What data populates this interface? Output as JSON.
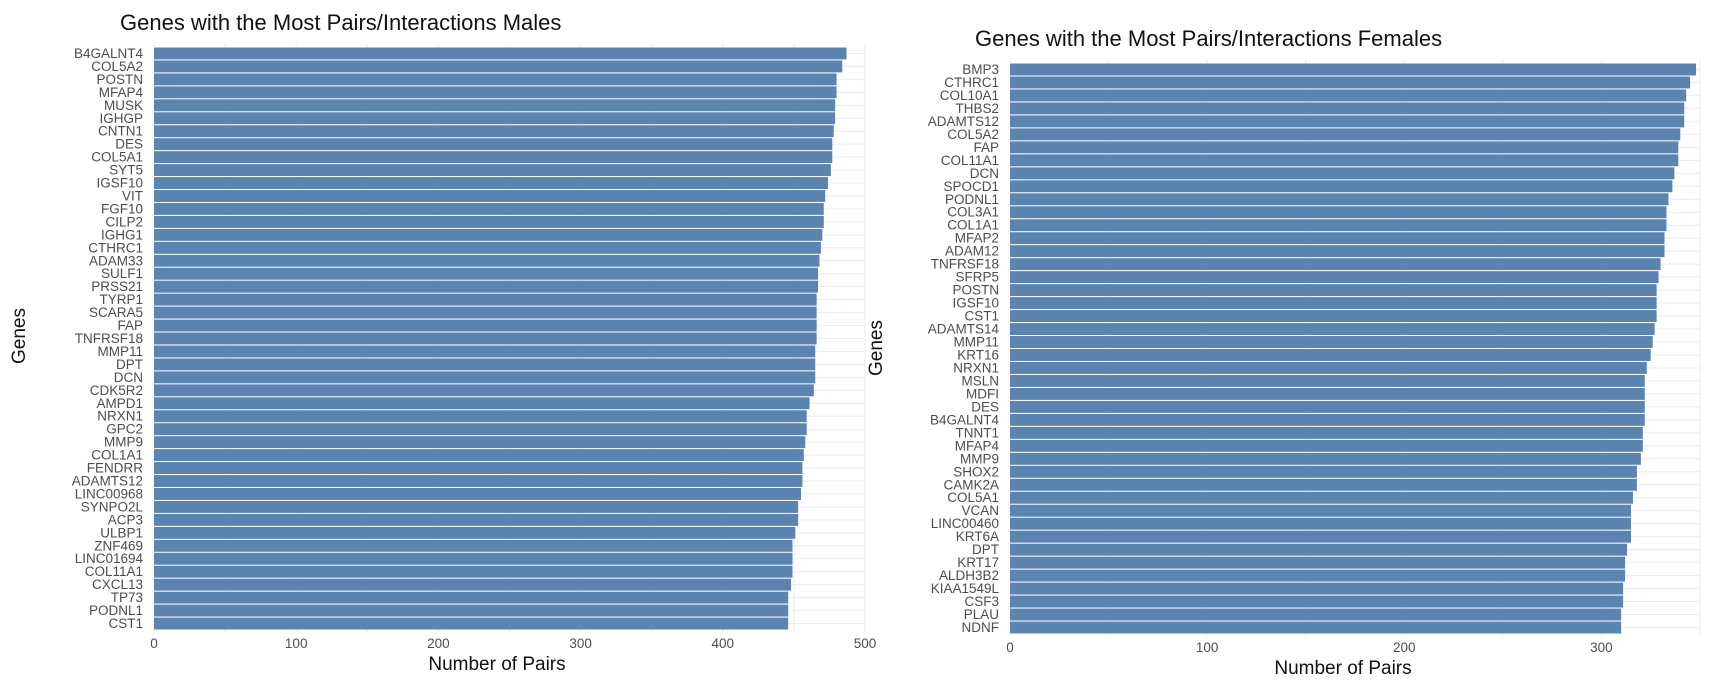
{
  "chart_data": [
    {
      "type": "bar",
      "orientation": "horizontal",
      "title": "Genes with the Most Pairs/Interactions Males",
      "xlabel": "Number of Pairs",
      "ylabel": "Genes",
      "xlim": [
        0,
        500
      ],
      "xticks": [
        0,
        100,
        200,
        300,
        400,
        500
      ],
      "xtick_labels": [
        "0",
        "100",
        "200",
        "300",
        "400",
        "500"
      ],
      "grid": true,
      "bar_color": "#5b84b1",
      "categories": [
        "B4GALNT4",
        "COL5A2",
        "POSTN",
        "MFAP4",
        "MUSK",
        "IGHGP",
        "CNTN1",
        "DES",
        "COL5A1",
        "SYT5",
        "IGSF10",
        "VIT",
        "FGF10",
        "CILP2",
        "IGHG1",
        "CTHRC1",
        "ADAM33",
        "SULF1",
        "PRSS21",
        "TYRP1",
        "SCARA5",
        "FAP",
        "TNFRSF18",
        "MMP11",
        "DPT",
        "DCN",
        "CDK5R2",
        "AMPD1",
        "NRXN1",
        "GPC2",
        "MMP9",
        "COL1A1",
        "FENDRR",
        "ADAMTS12",
        "LINC00968",
        "SYNPO2L",
        "ACP3",
        "ULBP1",
        "ZNF469",
        "LINC01694",
        "COL11A1",
        "CXCL13",
        "TP73",
        "PODNL1",
        "CST1"
      ],
      "values": [
        487,
        484,
        480,
        480,
        479,
        479,
        478,
        477,
        477,
        476,
        474,
        472,
        471,
        471,
        470,
        469,
        468,
        467,
        467,
        466,
        466,
        466,
        466,
        465,
        465,
        465,
        464,
        461,
        459,
        459,
        458,
        457,
        456,
        456,
        455,
        453,
        453,
        451,
        449,
        449,
        449,
        448,
        446,
        446,
        446
      ]
    },
    {
      "type": "bar",
      "orientation": "horizontal",
      "title": "Genes with the Most Pairs/Interactions Females",
      "xlabel": "Number of Pairs",
      "ylabel": "Genes",
      "xlim": [
        0,
        350
      ],
      "xticks": [
        0,
        100,
        200,
        300
      ],
      "xtick_labels": [
        "0",
        "100",
        "200",
        "300"
      ],
      "grid": true,
      "bar_color": "#5b84b1",
      "categories": [
        "BMP3",
        "CTHRC1",
        "COL10A1",
        "THBS2",
        "ADAMTS12",
        "COL5A2",
        "FAP",
        "COL11A1",
        "DCN",
        "SPOCD1",
        "PODNL1",
        "COL3A1",
        "COL1A1",
        "MFAP2",
        "ADAM12",
        "TNFRSF18",
        "SFRP5",
        "POSTN",
        "IGSF10",
        "CST1",
        "ADAMTS14",
        "MMP11",
        "KRT16",
        "NRXN1",
        "MSLN",
        "MDFI",
        "DES",
        "B4GALNT4",
        "TNNT1",
        "MFAP4",
        "MMP9",
        "SHOX2",
        "CAMK2A",
        "COL5A1",
        "VCAN",
        "LINC00460",
        "KRT6A",
        "DPT",
        "KRT17",
        "ALDH3B2",
        "KIAA1549L",
        "CSF3",
        "PLAU",
        "NDNF"
      ],
      "values": [
        348,
        345,
        343,
        342,
        342,
        340,
        339,
        339,
        337,
        336,
        334,
        333,
        333,
        332,
        332,
        330,
        329,
        328,
        328,
        328,
        327,
        326,
        325,
        323,
        322,
        322,
        322,
        322,
        321,
        321,
        320,
        318,
        318,
        316,
        315,
        315,
        315,
        313,
        312,
        312,
        311,
        311,
        310,
        310
      ]
    }
  ]
}
